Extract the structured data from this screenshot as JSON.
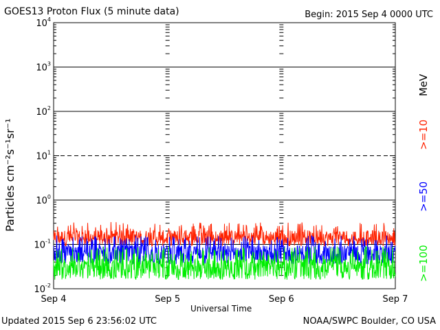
{
  "header": {
    "title": "GOES13 Proton Flux (5 minute data)",
    "begin": "Begin: 2015 Sep 4 0000 UTC"
  },
  "footer": {
    "updated": "Updated 2015 Sep  6 23:56:02 UTC",
    "credit": "NOAA/SWPC Boulder, CO USA"
  },
  "chart_data": {
    "type": "line",
    "scale_y": "log",
    "ylim": [
      0.01,
      10000
    ],
    "ytick_exponents": [
      -2,
      -1,
      0,
      1,
      2,
      3,
      4
    ],
    "ylabel": "Particles cm⁻²s⁻¹sr⁻¹",
    "xlabel": "Universal Time",
    "x_ticks": [
      "Sep 4",
      "Sep 5",
      "Sep 6",
      "Sep 7"
    ],
    "x_range_days": [
      0,
      3
    ],
    "units_label": "MeV",
    "threshold_dashed": 10,
    "series": [
      {
        "name": ">=10",
        "color": "#ff2200",
        "baseline": 0.13,
        "low": 0.1,
        "high": 0.32
      },
      {
        "name": ">=50",
        "color": "#0000ff",
        "baseline": 0.06,
        "low": 0.035,
        "high": 0.16
      },
      {
        "name": ">=100",
        "color": "#00ee00",
        "baseline": 0.03,
        "low": 0.016,
        "high": 0.09
      }
    ]
  }
}
